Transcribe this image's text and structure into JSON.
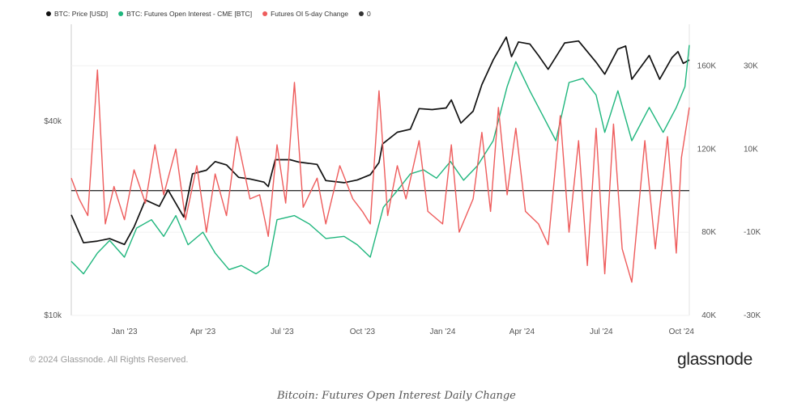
{
  "chart_data": {
    "type": "line",
    "title": "",
    "legend_position": "top-left",
    "grid": true,
    "x_start": "2022-11-01",
    "x_end": "2024-10-10",
    "x_ticks": [
      {
        "label": "Jan '23",
        "date": "2023-01-01"
      },
      {
        "label": "Apr '23",
        "date": "2023-04-01"
      },
      {
        "label": "Jul '23",
        "date": "2023-07-01"
      },
      {
        "label": "Oct '23",
        "date": "2023-10-01"
      },
      {
        "label": "Jan '24",
        "date": "2024-01-01"
      },
      {
        "label": "Apr '24",
        "date": "2024-04-01"
      },
      {
        "label": "Jul '24",
        "date": "2024-07-01"
      },
      {
        "label": "Oct '24",
        "date": "2024-10-01"
      }
    ],
    "y_axes": {
      "price": {
        "side": "left",
        "scale": "log",
        "range": [
          10000,
          80000
        ],
        "ticks": [
          {
            "label": "$10k",
            "value": 10000
          },
          {
            "label": "$40k",
            "value": 40000
          }
        ]
      },
      "open_interest": {
        "side": "right",
        "scale": "linear",
        "range": [
          40000,
          180000
        ],
        "ticks": [
          {
            "label": "160K",
            "value": 160000
          },
          {
            "label": "120K",
            "value": 120000
          },
          {
            "label": "80K",
            "value": 80000
          },
          {
            "label": "40K",
            "value": 40000
          }
        ]
      },
      "change": {
        "side": "right-outer",
        "scale": "linear",
        "range": [
          -30000,
          40000
        ],
        "ticks": [
          {
            "label": "30K",
            "value": 30000
          },
          {
            "label": "10K",
            "value": 10000
          },
          {
            "label": "-10K",
            "value": -10000
          },
          {
            "label": "-30K",
            "value": -30000
          }
        ]
      }
    },
    "series": [
      {
        "name": "BTC: Price [USD]",
        "axis": "price",
        "color": "#111111",
        "points": [
          [
            "2022-11-01",
            20500
          ],
          [
            "2022-11-15",
            16800
          ],
          [
            "2022-12-01",
            17000
          ],
          [
            "2022-12-15",
            17300
          ],
          [
            "2023-01-01",
            16600
          ],
          [
            "2023-01-12",
            18800
          ],
          [
            "2023-01-25",
            22800
          ],
          [
            "2023-02-10",
            21800
          ],
          [
            "2023-02-20",
            24500
          ],
          [
            "2023-03-10",
            20200
          ],
          [
            "2023-03-20",
            27500
          ],
          [
            "2023-04-05",
            28200
          ],
          [
            "2023-04-15",
            30000
          ],
          [
            "2023-04-28",
            29300
          ],
          [
            "2023-05-12",
            26800
          ],
          [
            "2023-05-25",
            26500
          ],
          [
            "2023-06-10",
            25900
          ],
          [
            "2023-06-15",
            25100
          ],
          [
            "2023-06-23",
            30400
          ],
          [
            "2023-07-10",
            30400
          ],
          [
            "2023-07-20",
            29900
          ],
          [
            "2023-08-10",
            29400
          ],
          [
            "2023-08-20",
            26200
          ],
          [
            "2023-09-10",
            25800
          ],
          [
            "2023-09-25",
            26300
          ],
          [
            "2023-10-10",
            27300
          ],
          [
            "2023-10-20",
            29800
          ],
          [
            "2023-10-24",
            34000
          ],
          [
            "2023-11-10",
            37000
          ],
          [
            "2023-11-25",
            37800
          ],
          [
            "2023-12-05",
            43800
          ],
          [
            "2023-12-20",
            43500
          ],
          [
            "2024-01-05",
            44000
          ],
          [
            "2024-01-11",
            46600
          ],
          [
            "2024-01-22",
            39500
          ],
          [
            "2024-02-05",
            43000
          ],
          [
            "2024-02-15",
            52000
          ],
          [
            "2024-02-28",
            62000
          ],
          [
            "2024-03-14",
            73000
          ],
          [
            "2024-03-20",
            63500
          ],
          [
            "2024-03-28",
            70500
          ],
          [
            "2024-04-10",
            69500
          ],
          [
            "2024-04-20",
            64000
          ],
          [
            "2024-05-01",
            58000
          ],
          [
            "2024-05-20",
            70000
          ],
          [
            "2024-06-05",
            71000
          ],
          [
            "2024-06-25",
            61000
          ],
          [
            "2024-07-05",
            56000
          ],
          [
            "2024-07-20",
            67000
          ],
          [
            "2024-07-29",
            68500
          ],
          [
            "2024-08-05",
            54000
          ],
          [
            "2024-08-25",
            64000
          ],
          [
            "2024-09-06",
            54000
          ],
          [
            "2024-09-20",
            63000
          ],
          [
            "2024-09-27",
            65800
          ],
          [
            "2024-10-03",
            60500
          ],
          [
            "2024-10-10",
            62000
          ]
        ]
      },
      {
        "name": "BTC: Futures Open Interest - CME [BTC]",
        "axis": "open_interest",
        "color": "#1fb67d",
        "points": [
          [
            "2022-11-01",
            66000
          ],
          [
            "2022-11-15",
            60000
          ],
          [
            "2022-12-01",
            70000
          ],
          [
            "2022-12-15",
            76000
          ],
          [
            "2023-01-01",
            68000
          ],
          [
            "2023-01-15",
            82000
          ],
          [
            "2023-02-01",
            86000
          ],
          [
            "2023-02-15",
            78000
          ],
          [
            "2023-03-01",
            88000
          ],
          [
            "2023-03-15",
            74000
          ],
          [
            "2023-04-01",
            80000
          ],
          [
            "2023-04-15",
            70000
          ],
          [
            "2023-05-01",
            62000
          ],
          [
            "2023-05-15",
            64000
          ],
          [
            "2023-06-01",
            60000
          ],
          [
            "2023-06-15",
            64000
          ],
          [
            "2023-06-25",
            86000
          ],
          [
            "2023-07-15",
            88000
          ],
          [
            "2023-08-01",
            84000
          ],
          [
            "2023-08-20",
            77000
          ],
          [
            "2023-09-10",
            78000
          ],
          [
            "2023-09-25",
            74000
          ],
          [
            "2023-10-10",
            68000
          ],
          [
            "2023-10-25",
            92000
          ],
          [
            "2023-11-10",
            100000
          ],
          [
            "2023-11-25",
            108000
          ],
          [
            "2023-12-10",
            110000
          ],
          [
            "2023-12-25",
            106000
          ],
          [
            "2024-01-10",
            114000
          ],
          [
            "2024-01-25",
            105000
          ],
          [
            "2024-02-10",
            112000
          ],
          [
            "2024-02-28",
            124000
          ],
          [
            "2024-03-15",
            150000
          ],
          [
            "2024-03-25",
            162000
          ],
          [
            "2024-04-10",
            148000
          ],
          [
            "2024-04-25",
            136000
          ],
          [
            "2024-05-10",
            124000
          ],
          [
            "2024-05-25",
            152000
          ],
          [
            "2024-06-10",
            154000
          ],
          [
            "2024-06-25",
            146000
          ],
          [
            "2024-07-05",
            128000
          ],
          [
            "2024-07-20",
            148000
          ],
          [
            "2024-08-05",
            124000
          ],
          [
            "2024-08-25",
            140000
          ],
          [
            "2024-09-10",
            128000
          ],
          [
            "2024-09-25",
            140000
          ],
          [
            "2024-10-05",
            150000
          ],
          [
            "2024-10-10",
            170000
          ]
        ]
      },
      {
        "name": "Futures OI 5-day Change",
        "axis": "change",
        "color": "#ee5c5c",
        "points": [
          [
            "2022-11-01",
            3000
          ],
          [
            "2022-11-10",
            -2000
          ],
          [
            "2022-11-20",
            -6000
          ],
          [
            "2022-12-01",
            29000
          ],
          [
            "2022-12-10",
            -8000
          ],
          [
            "2022-12-20",
            1000
          ],
          [
            "2023-01-01",
            -7000
          ],
          [
            "2023-01-12",
            5000
          ],
          [
            "2023-01-25",
            -3000
          ],
          [
            "2023-02-05",
            11000
          ],
          [
            "2023-02-15",
            -1000
          ],
          [
            "2023-03-01",
            10000
          ],
          [
            "2023-03-12",
            -7000
          ],
          [
            "2023-03-25",
            6000
          ],
          [
            "2023-04-05",
            -10000
          ],
          [
            "2023-04-15",
            4000
          ],
          [
            "2023-04-28",
            -6000
          ],
          [
            "2023-05-10",
            13000
          ],
          [
            "2023-05-25",
            -2000
          ],
          [
            "2023-06-05",
            -1000
          ],
          [
            "2023-06-15",
            -11000
          ],
          [
            "2023-06-25",
            11000
          ],
          [
            "2023-07-05",
            -3000
          ],
          [
            "2023-07-15",
            26000
          ],
          [
            "2023-07-25",
            -4000
          ],
          [
            "2023-08-10",
            3000
          ],
          [
            "2023-08-20",
            -8000
          ],
          [
            "2023-09-05",
            6000
          ],
          [
            "2023-09-20",
            -2000
          ],
          [
            "2023-10-01",
            -5000
          ],
          [
            "2023-10-10",
            -8000
          ],
          [
            "2023-10-20",
            24000
          ],
          [
            "2023-10-30",
            -6000
          ],
          [
            "2023-11-10",
            6000
          ],
          [
            "2023-11-20",
            -2000
          ],
          [
            "2023-12-05",
            12000
          ],
          [
            "2023-12-15",
            -5000
          ],
          [
            "2024-01-01",
            -8000
          ],
          [
            "2024-01-11",
            11000
          ],
          [
            "2024-01-20",
            -10000
          ],
          [
            "2024-02-05",
            -2000
          ],
          [
            "2024-02-15",
            14000
          ],
          [
            "2024-02-25",
            -5000
          ],
          [
            "2024-03-05",
            20000
          ],
          [
            "2024-03-15",
            -1000
          ],
          [
            "2024-03-25",
            15000
          ],
          [
            "2024-04-05",
            -5000
          ],
          [
            "2024-04-20",
            -8000
          ],
          [
            "2024-05-01",
            -13000
          ],
          [
            "2024-05-15",
            18000
          ],
          [
            "2024-05-25",
            -10000
          ],
          [
            "2024-06-05",
            12000
          ],
          [
            "2024-06-15",
            -18000
          ],
          [
            "2024-06-25",
            15000
          ],
          [
            "2024-07-05",
            -20000
          ],
          [
            "2024-07-15",
            16000
          ],
          [
            "2024-07-25",
            -14000
          ],
          [
            "2024-08-05",
            -22000
          ],
          [
            "2024-08-20",
            12000
          ],
          [
            "2024-09-01",
            -14000
          ],
          [
            "2024-09-15",
            13000
          ],
          [
            "2024-09-25",
            -15000
          ],
          [
            "2024-10-01",
            8000
          ],
          [
            "2024-10-10",
            20000
          ]
        ]
      },
      {
        "name": "0",
        "axis": "change",
        "color": "#333333",
        "points": [
          [
            "2022-11-01",
            0
          ],
          [
            "2024-10-10",
            0
          ]
        ]
      }
    ]
  },
  "footer": {
    "copyright": "© 2024 Glassnode. All Rights Reserved.",
    "brand": "glassnode"
  },
  "caption": "Bitcoin: Futures Open Interest Daily Change"
}
